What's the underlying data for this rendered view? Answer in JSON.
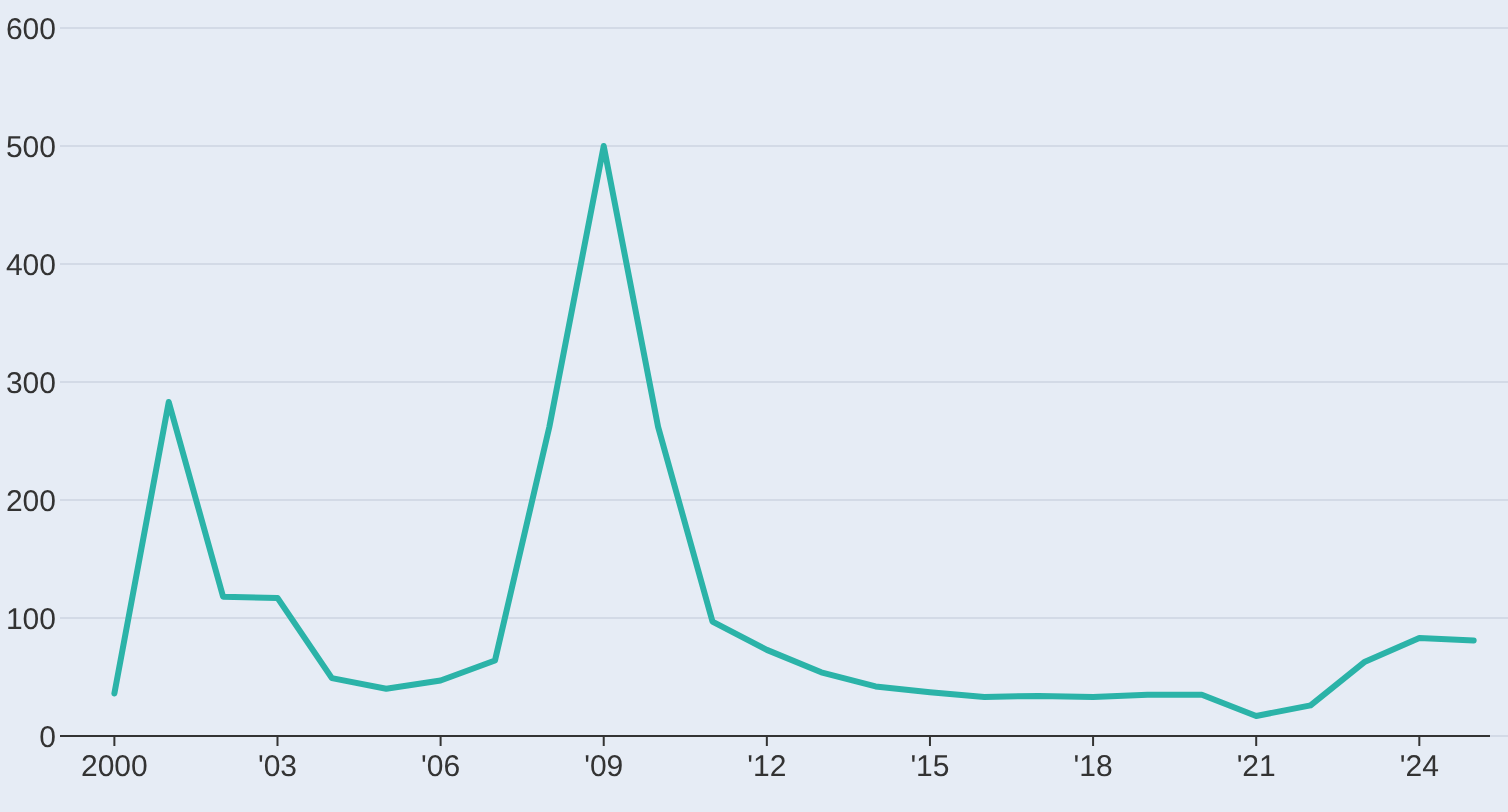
{
  "chart_data": {
    "type": "line",
    "x": [
      2000,
      2001,
      2002,
      2003,
      2004,
      2005,
      2006,
      2007,
      2008,
      2009,
      2010,
      2011,
      2012,
      2013,
      2014,
      2015,
      2016,
      2017,
      2018,
      2019,
      2020,
      2021,
      2022,
      2023,
      2024,
      2025
    ],
    "series": [
      {
        "color": "#2bb3a8",
        "values": [
          36,
          283,
          118,
          117,
          49,
          40,
          47,
          64,
          262,
          500,
          262,
          97,
          73,
          54,
          42,
          37,
          33,
          34,
          33,
          35,
          35,
          17,
          26,
          63,
          83,
          81
        ]
      }
    ],
    "xlim": [
      1999,
      2025.3
    ],
    "xticks": [
      2000,
      {
        "value": 2003,
        "label": "'03"
      },
      {
        "value": 2006,
        "label": "'06"
      },
      {
        "value": 2009,
        "label": "'09"
      },
      {
        "value": 2012,
        "label": "'12"
      },
      {
        "value": 2015,
        "label": "'15"
      },
      {
        "value": 2018,
        "label": "'18"
      },
      {
        "value": 2021,
        "label": "'21"
      },
      {
        "value": 2024,
        "label": "'24"
      }
    ],
    "ylim": [
      0,
      600
    ],
    "yticks": [
      0,
      100,
      200,
      300,
      400,
      500,
      600
    ],
    "grid": "y",
    "marker": "none",
    "line_style": "solid"
  }
}
